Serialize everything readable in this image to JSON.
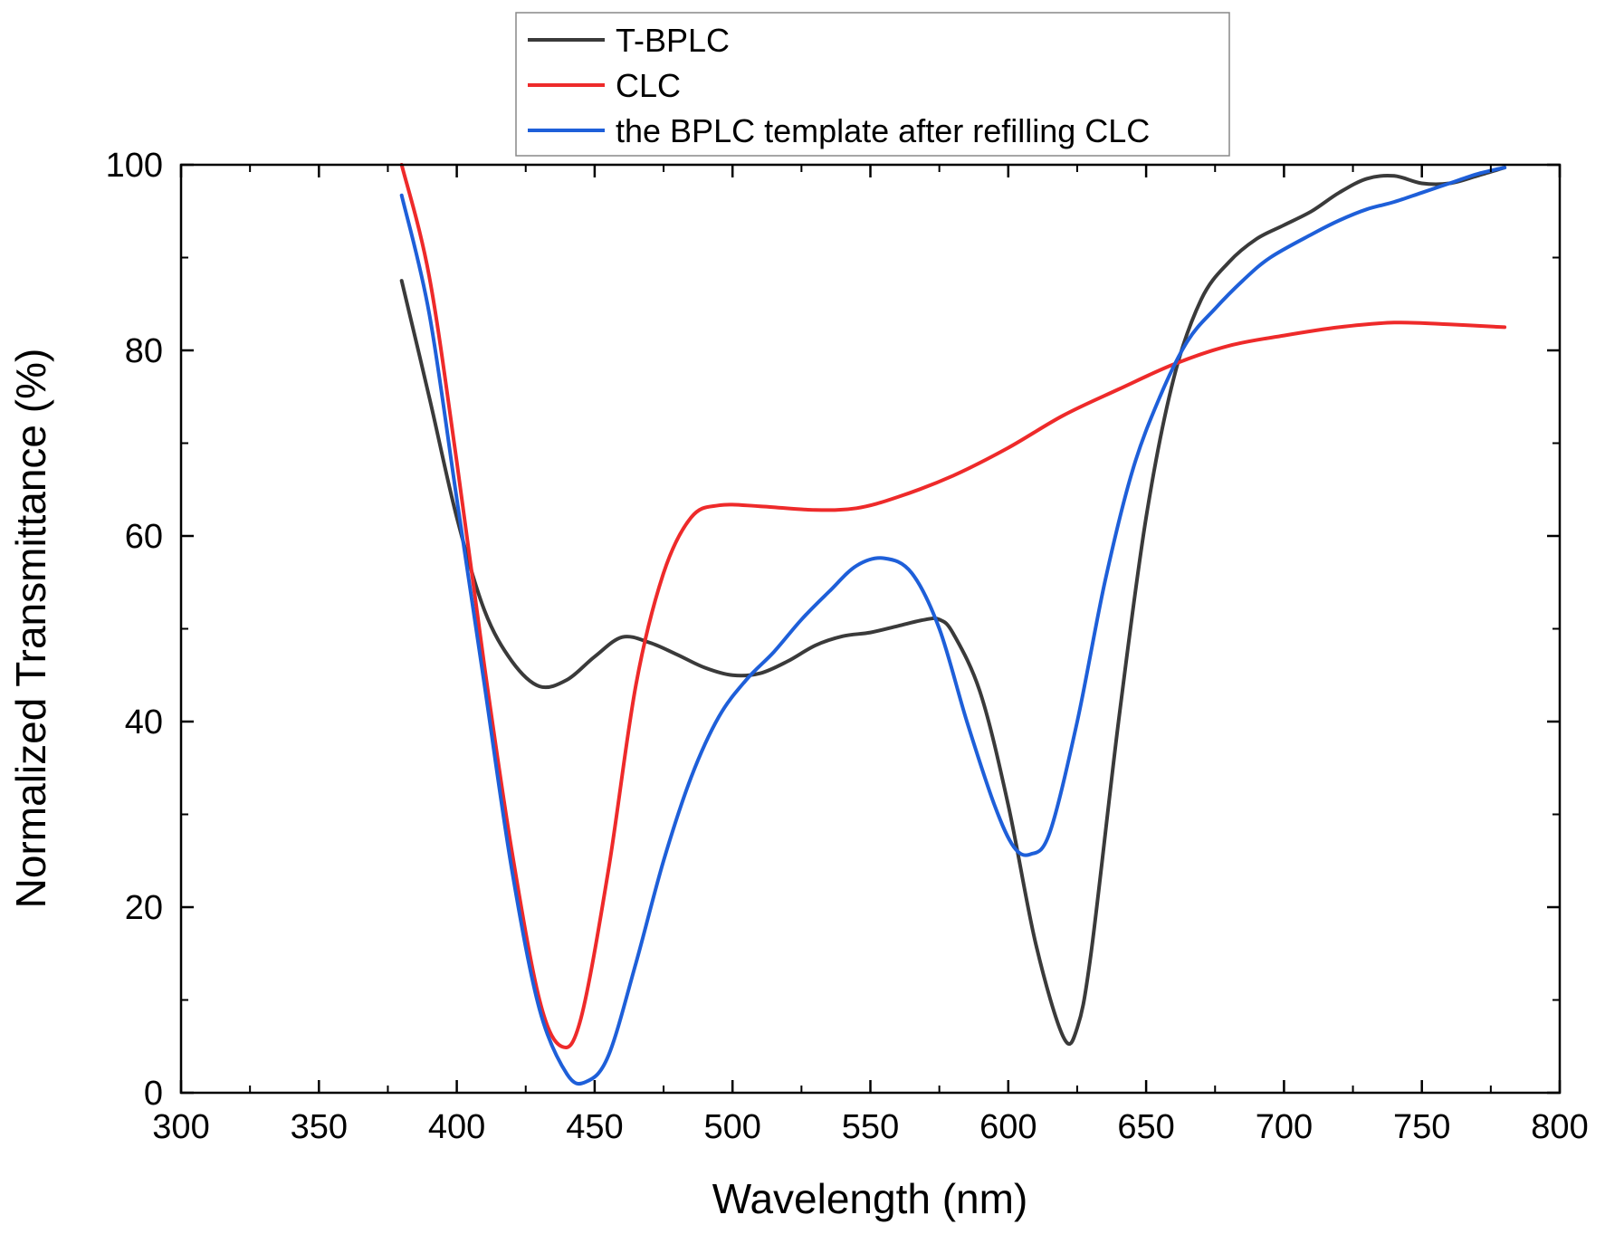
{
  "chart_data": {
    "type": "line",
    "title": "",
    "xlabel": "Wavelength (nm)",
    "ylabel": "Normalized Transmittance (%)",
    "xlim": [
      300,
      800
    ],
    "ylim": [
      0,
      100
    ],
    "x_ticks": [
      "300",
      "350",
      "400",
      "450",
      "500",
      "550",
      "600",
      "650",
      "700",
      "750",
      "800"
    ],
    "y_ticks": [
      "0",
      "20",
      "40",
      "60",
      "80",
      "100"
    ],
    "grid": false,
    "legend_position": "top-center",
    "series": [
      {
        "name": "T-BPLC",
        "color": "#3a3a3a",
        "points": [
          [
            380,
            87.5
          ],
          [
            390,
            75
          ],
          [
            400,
            62
          ],
          [
            410,
            52
          ],
          [
            420,
            46.5
          ],
          [
            430,
            43.8
          ],
          [
            440,
            44.5
          ],
          [
            450,
            47
          ],
          [
            460,
            49.1
          ],
          [
            470,
            48.5
          ],
          [
            480,
            47.2
          ],
          [
            490,
            45.8
          ],
          [
            500,
            45
          ],
          [
            510,
            45.2
          ],
          [
            520,
            46.5
          ],
          [
            530,
            48.2
          ],
          [
            540,
            49.2
          ],
          [
            550,
            49.6
          ],
          [
            560,
            50.3
          ],
          [
            570,
            51
          ],
          [
            575,
            51
          ],
          [
            580,
            49.5
          ],
          [
            590,
            43
          ],
          [
            600,
            31
          ],
          [
            610,
            16
          ],
          [
            620,
            6
          ],
          [
            625,
            7
          ],
          [
            630,
            15
          ],
          [
            640,
            40
          ],
          [
            650,
            62
          ],
          [
            660,
            77
          ],
          [
            670,
            85.5
          ],
          [
            680,
            89.5
          ],
          [
            690,
            92
          ],
          [
            700,
            93.5
          ],
          [
            710,
            95
          ],
          [
            720,
            97
          ],
          [
            730,
            98.5
          ],
          [
            740,
            98.8
          ],
          [
            750,
            98
          ],
          [
            760,
            98
          ],
          [
            770,
            98.8
          ],
          [
            780,
            99.7
          ]
        ]
      },
      {
        "name": "CLC",
        "color": "#ee2a2a",
        "points": [
          [
            380,
            100
          ],
          [
            390,
            88
          ],
          [
            400,
            68
          ],
          [
            410,
            46
          ],
          [
            420,
            26
          ],
          [
            430,
            10
          ],
          [
            438,
            5
          ],
          [
            445,
            8
          ],
          [
            455,
            24
          ],
          [
            465,
            44
          ],
          [
            475,
            56
          ],
          [
            485,
            62
          ],
          [
            495,
            63.3
          ],
          [
            510,
            63.2
          ],
          [
            530,
            62.8
          ],
          [
            545,
            63
          ],
          [
            560,
            64.2
          ],
          [
            580,
            66.5
          ],
          [
            600,
            69.5
          ],
          [
            620,
            73
          ],
          [
            640,
            75.8
          ],
          [
            660,
            78.5
          ],
          [
            680,
            80.5
          ],
          [
            700,
            81.6
          ],
          [
            720,
            82.5
          ],
          [
            740,
            83
          ],
          [
            760,
            82.8
          ],
          [
            780,
            82.5
          ]
        ]
      },
      {
        "name": "the BPLC template after refilling CLC",
        "color": "#1e5fd9",
        "points": [
          [
            380,
            96.7
          ],
          [
            390,
            84
          ],
          [
            400,
            64
          ],
          [
            410,
            44
          ],
          [
            420,
            24
          ],
          [
            430,
            9
          ],
          [
            440,
            2
          ],
          [
            447,
            1.2
          ],
          [
            455,
            4
          ],
          [
            465,
            14
          ],
          [
            475,
            25
          ],
          [
            485,
            34
          ],
          [
            495,
            40.5
          ],
          [
            505,
            44.5
          ],
          [
            515,
            47.5
          ],
          [
            525,
            51
          ],
          [
            535,
            54
          ],
          [
            545,
            56.8
          ],
          [
            555,
            57.6
          ],
          [
            565,
            56
          ],
          [
            575,
            50
          ],
          [
            585,
            40
          ],
          [
            595,
            31
          ],
          [
            602,
            26.5
          ],
          [
            608,
            25.7
          ],
          [
            615,
            28
          ],
          [
            625,
            40
          ],
          [
            635,
            55
          ],
          [
            645,
            67
          ],
          [
            655,
            75
          ],
          [
            665,
            81
          ],
          [
            675,
            84.5
          ],
          [
            685,
            87.5
          ],
          [
            695,
            90
          ],
          [
            710,
            92.5
          ],
          [
            720,
            94
          ],
          [
            730,
            95.2
          ],
          [
            740,
            96
          ],
          [
            750,
            97
          ],
          [
            760,
            98
          ],
          [
            770,
            99
          ],
          [
            780,
            99.7
          ]
        ]
      }
    ]
  }
}
